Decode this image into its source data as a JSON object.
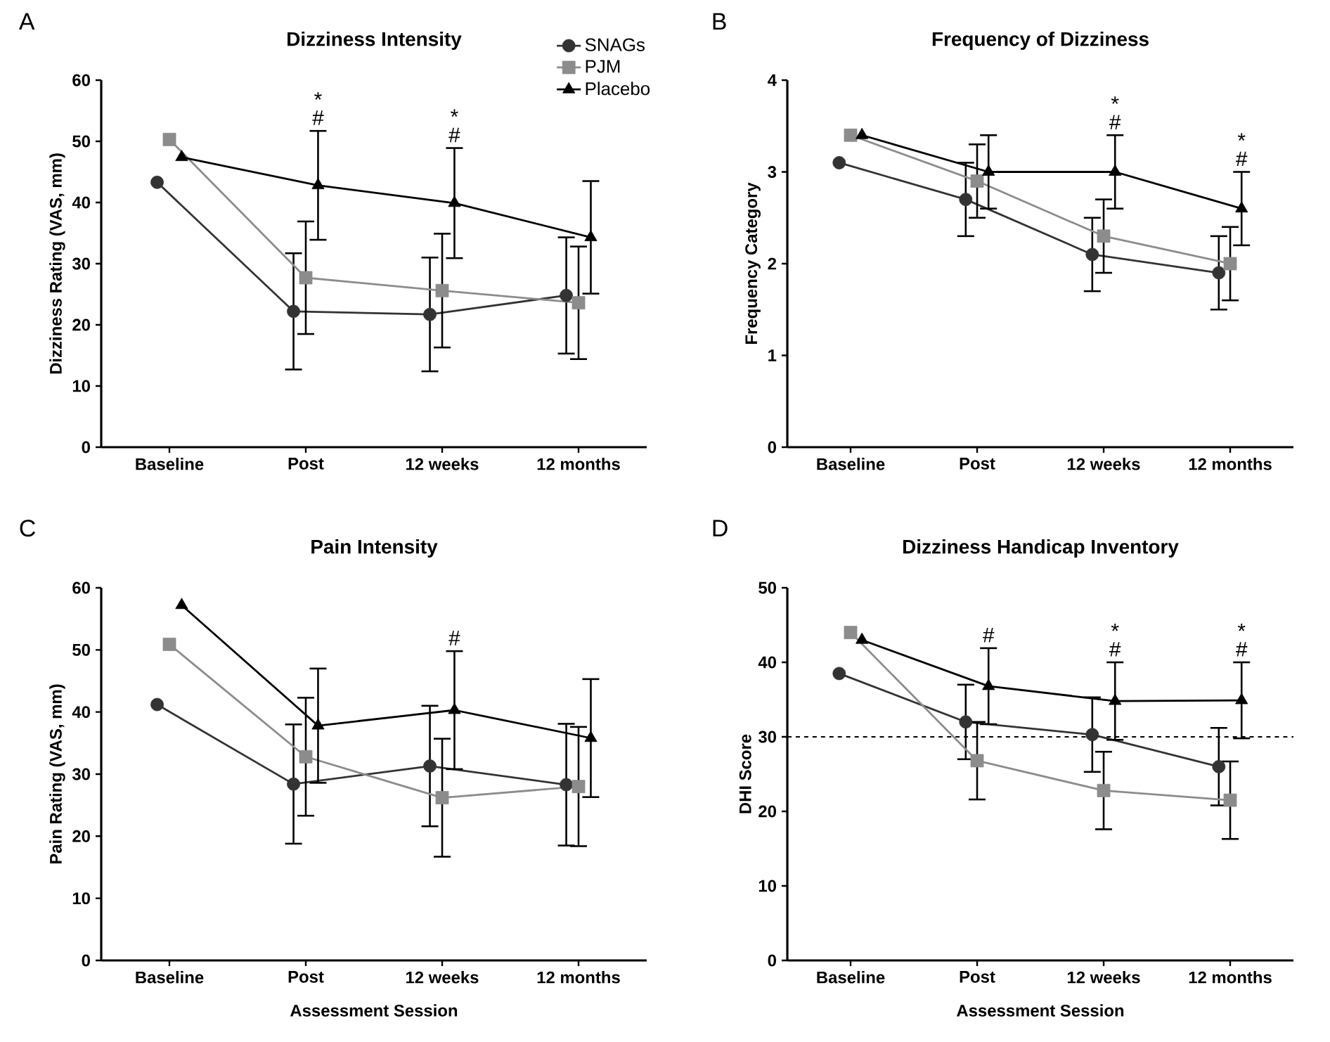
{
  "chart_data": [
    {
      "type": "line",
      "title": "Dizziness Intensity",
      "ylabel": "Dizziness Rating (VAS, mm)",
      "categories": [
        "Baseline",
        "Post",
        "12 weeks",
        "12 months"
      ],
      "ylim": [
        0,
        60
      ],
      "yticks": [
        0,
        10,
        20,
        30,
        40,
        50,
        60
      ],
      "legend": "top right",
      "series": [
        {
          "name": "SNAGs",
          "color": "#333333",
          "marker": "circle",
          "values": [
            43.3,
            22.2,
            21.7,
            24.8
          ],
          "errors": [
            null,
            9.5,
            9.3,
            9.5
          ]
        },
        {
          "name": "PJM",
          "color": "#8c8c8c",
          "marker": "square",
          "values": [
            50.3,
            27.7,
            25.6,
            23.6
          ],
          "errors": [
            null,
            9.2,
            9.3,
            9.2
          ]
        },
        {
          "name": "Placebo",
          "color": "#000000",
          "marker": "triangle",
          "values": [
            47.4,
            42.8,
            39.9,
            34.3
          ],
          "errors": [
            null,
            8.9,
            9.0,
            9.2
          ]
        }
      ],
      "annotations": [
        "A",
        {
          "text": "#",
          "x": "Post",
          "y": 51.7
        },
        {
          "text": "*",
          "x": "Post",
          "y": 51.7
        },
        {
          "text": "#",
          "x": "12 weeks",
          "y": 48.9
        },
        {
          "text": "*",
          "x": "12 weeks",
          "y": 48.9
        }
      ]
    },
    {
      "type": "line",
      "title": "Frequency of Dizziness",
      "ylabel": "Frequency Category",
      "categories": [
        "Baseline",
        "Post",
        "12 weeks",
        "12 months"
      ],
      "ylim": [
        0,
        4
      ],
      "yticks": [
        0,
        1,
        2,
        3,
        4
      ],
      "series": [
        {
          "color": "#333333",
          "marker": "circle",
          "values": [
            3.1,
            2.7,
            2.1,
            1.9
          ],
          "errors": [
            null,
            0.4,
            0.4,
            0.4
          ]
        },
        {
          "color": "#8c8c8c",
          "marker": "square",
          "values": [
            3.4,
            2.9,
            2.3,
            2.0
          ],
          "errors": [
            null,
            0.4,
            0.4,
            0.4
          ]
        },
        {
          "color": "#000000",
          "marker": "triangle",
          "values": [
            3.4,
            3.0,
            3.0,
            2.6
          ],
          "errors": [
            null,
            0.4,
            0.4,
            0.4
          ]
        }
      ],
      "annotations": [
        "B",
        {
          "text": "#",
          "x": "12 weeks",
          "y": 3.4
        },
        {
          "text": "*",
          "x": "12 weeks",
          "y": 3.4
        },
        {
          "text": "#",
          "x": "12 months",
          "y": 3.0
        },
        {
          "text": "*",
          "x": "12 months",
          "y": 3.0
        }
      ]
    },
    {
      "type": "line",
      "title": "Pain Intensity",
      "xlabel": "Assessment Session",
      "ylabel": "Pain Rating (VAS, mm)",
      "categories": [
        "Baseline",
        "Post",
        "12 weeks",
        "12 months"
      ],
      "ylim": [
        0,
        60
      ],
      "yticks": [
        0,
        10,
        20,
        30,
        40,
        50,
        60
      ],
      "series": [
        {
          "color": "#333333",
          "marker": "circle",
          "values": [
            41.2,
            28.4,
            31.3,
            28.3
          ],
          "errors": [
            null,
            9.6,
            9.7,
            9.8
          ]
        },
        {
          "color": "#8c8c8c",
          "marker": "square",
          "values": [
            50.9,
            32.8,
            26.2,
            28.0
          ],
          "errors": [
            null,
            9.5,
            9.5,
            9.6
          ]
        },
        {
          "color": "#000000",
          "marker": "triangle",
          "values": [
            57.2,
            37.8,
            40.3,
            35.8
          ],
          "errors": [
            null,
            9.2,
            9.5,
            9.5
          ]
        }
      ],
      "annotations": [
        "C",
        {
          "text": "#",
          "x": "12 weeks",
          "y": 49.8
        }
      ]
    },
    {
      "type": "line",
      "title": "Dizziness Handicap Inventory",
      "xlabel": "Assessment Session",
      "ylabel": "DHI Score",
      "categories": [
        "Baseline",
        "Post",
        "12 weeks",
        "12 months"
      ],
      "ylim": [
        0,
        50
      ],
      "yticks": [
        0,
        10,
        20,
        30,
        40,
        50
      ],
      "series": [
        {
          "color": "#333333",
          "marker": "circle",
          "values": [
            38.5,
            32.0,
            30.3,
            26.0
          ],
          "errors": [
            null,
            5.0,
            5.0,
            5.2
          ]
        },
        {
          "color": "#8c8c8c",
          "marker": "square",
          "values": [
            44.0,
            26.8,
            22.8,
            21.5
          ],
          "errors": [
            null,
            5.2,
            5.2,
            5.2
          ]
        },
        {
          "color": "#000000",
          "marker": "triangle",
          "values": [
            43.0,
            36.8,
            34.8,
            34.9
          ],
          "errors": [
            null,
            5.1,
            5.2,
            5.1
          ]
        }
      ],
      "ref_lines": [
        {
          "axis": "y",
          "value": 30,
          "line_style": "dashed",
          "color": "#000000"
        }
      ],
      "annotations": [
        "D",
        {
          "text": "#",
          "x": "Post",
          "y": 41.9
        },
        {
          "text": "#",
          "x": "12 weeks",
          "y": 40.0
        },
        {
          "text": "*",
          "x": "12 weeks",
          "y": 40.0
        },
        {
          "text": "#",
          "x": "12 months",
          "y": 40.0
        },
        {
          "text": "*",
          "x": "12 months",
          "y": 40.0
        }
      ]
    }
  ]
}
